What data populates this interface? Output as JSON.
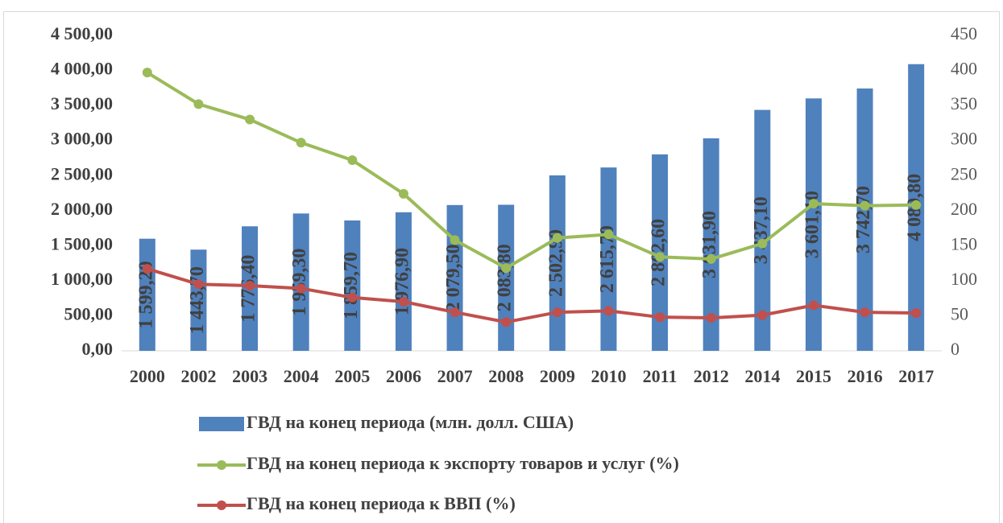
{
  "chart_data": {
    "type": "bar-line",
    "categories": [
      "2000",
      "2002",
      "2003",
      "2004",
      "2005",
      "2006",
      "2007",
      "2008",
      "2009",
      "2010",
      "2011",
      "2012",
      "2014",
      "2015",
      "2016",
      "2017"
    ],
    "series": [
      {
        "name": "ГВД на конец периода (млн. долл. США)",
        "type": "bar",
        "color": "#4f81bd",
        "values": [
          1599.2,
          1443.7,
          1776.4,
          1959.3,
          1859.7,
          1976.9,
          2079.5,
          2083.8,
          2502.9,
          2615.7,
          2802.6,
          3031.9,
          3437.1,
          3601.1,
          3742.7,
          4089.8
        ],
        "value_labels": [
          "1 599,20",
          "1 443,70",
          "1 776,40",
          "1 959,30",
          "1 859,70",
          "1 976,90",
          "2 079,50",
          "2 083,80",
          "2 502,90",
          "2 615,70",
          "2 802,60",
          "3 031,90",
          "3 437,10",
          "3 601,10",
          "3 742,70",
          "4 089,80"
        ]
      },
      {
        "name": "ГВД на конец периода к экспорту товаров и услуг (%)",
        "type": "line",
        "axis": "y2",
        "color": "#9bbb59",
        "values": [
          397,
          352,
          330,
          297,
          272,
          224,
          158,
          118,
          161,
          166,
          134,
          131,
          153,
          210,
          207,
          208
        ]
      },
      {
        "name": "ГВД на конец периода к ВВП (%)",
        "type": "line",
        "axis": "y2",
        "color": "#c0504d",
        "values": [
          117,
          95,
          93,
          89,
          76,
          70,
          55,
          41,
          55,
          57,
          48,
          47,
          51,
          65,
          55,
          54
        ]
      }
    ],
    "ylim": [
      0,
      4500
    ],
    "yticks": [
      {
        "value": 0,
        "label": "0,00"
      },
      {
        "value": 500,
        "label": "500,00"
      },
      {
        "value": 1000,
        "label": "1 000,00"
      },
      {
        "value": 1500,
        "label": "1 500,00"
      },
      {
        "value": 2000,
        "label": "2 000,00"
      },
      {
        "value": 2500,
        "label": "2 500,00"
      },
      {
        "value": 3000,
        "label": "3 000,00"
      },
      {
        "value": 3500,
        "label": "3 500,00"
      },
      {
        "value": 4000,
        "label": "4 000,00"
      },
      {
        "value": 4500,
        "label": "4 500,00"
      }
    ],
    "y2lim": [
      0,
      450
    ],
    "y2ticks": [
      0,
      50,
      100,
      150,
      200,
      250,
      300,
      350,
      400,
      450
    ]
  }
}
